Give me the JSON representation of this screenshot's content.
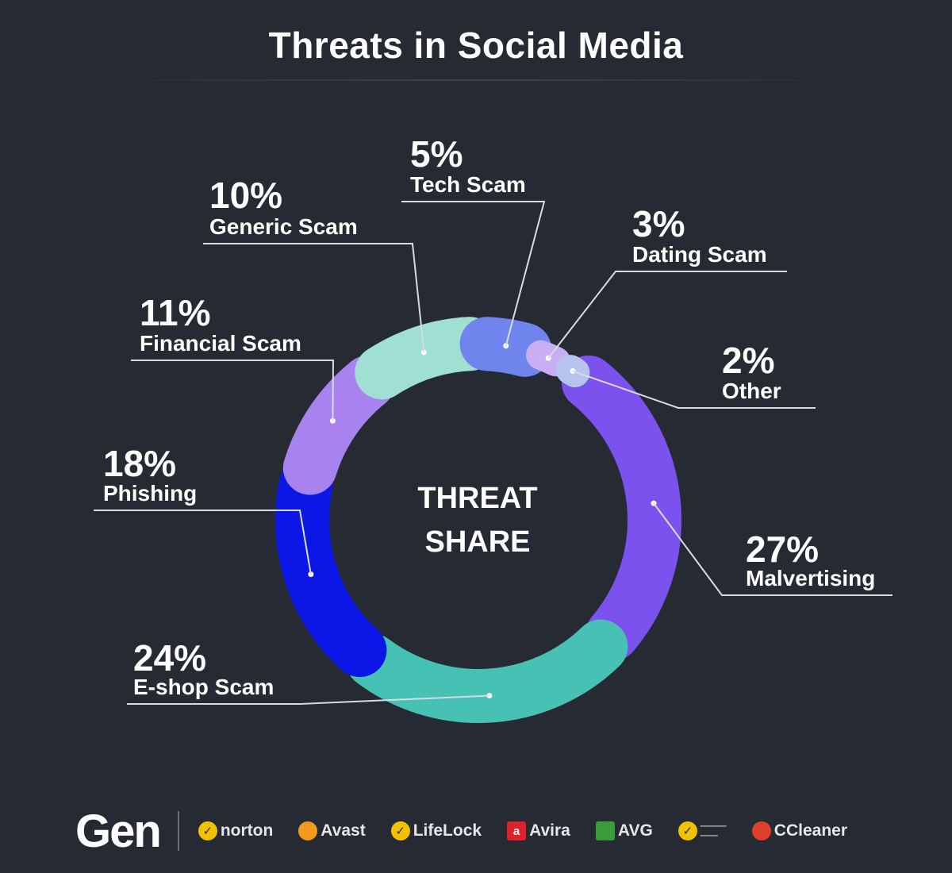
{
  "title": "Threats in Social Media",
  "center_label": [
    "THREAT",
    "SHARE"
  ],
  "chart_data": {
    "type": "pie",
    "title": "Threats in Social Media",
    "center_label": "THREAT SHARE",
    "slices": [
      {
        "label": "Malvertising",
        "value": 27,
        "pct_text": "27%",
        "color": "#7b52ee"
      },
      {
        "label": "E-shop Scam",
        "value": 24,
        "pct_text": "24%",
        "color": "#48c1b5"
      },
      {
        "label": "Phishing",
        "value": 18,
        "pct_text": "18%",
        "color": "#0a17e6"
      },
      {
        "label": "Financial Scam",
        "value": 11,
        "pct_text": "11%",
        "color": "#a883ef"
      },
      {
        "label": "Generic Scam",
        "value": 10,
        "pct_text": "10%",
        "color": "#9fe0d3"
      },
      {
        "label": "Tech Scam",
        "value": 5,
        "pct_text": "5%",
        "color": "#6f84ec"
      },
      {
        "label": "Dating Scam",
        "value": 3,
        "pct_text": "3%",
        "color": "#c9aef4"
      },
      {
        "label": "Other",
        "value": 2,
        "pct_text": "2%",
        "color": "#b6c4ef"
      }
    ]
  },
  "footer": {
    "logo": "Gen",
    "brands": [
      {
        "name": "norton",
        "icon": "check-circle-icon",
        "color": "#f2c200"
      },
      {
        "name": "Avast",
        "icon": "avast-icon",
        "color": "#f39a1d"
      },
      {
        "name": "LifeLock",
        "icon": "check-circle-icon",
        "color": "#f2c200"
      },
      {
        "name": "Avira",
        "icon": "avira-icon",
        "color": "#e0202b"
      },
      {
        "name": "AVG",
        "icon": "avg-icon",
        "color": "#3a9b3a"
      },
      {
        "name": "",
        "icon": "check-circle-icon",
        "color": "#f2c200"
      },
      {
        "name": "CCleaner",
        "icon": "ccleaner-icon",
        "color": "#e0402b"
      }
    ]
  }
}
